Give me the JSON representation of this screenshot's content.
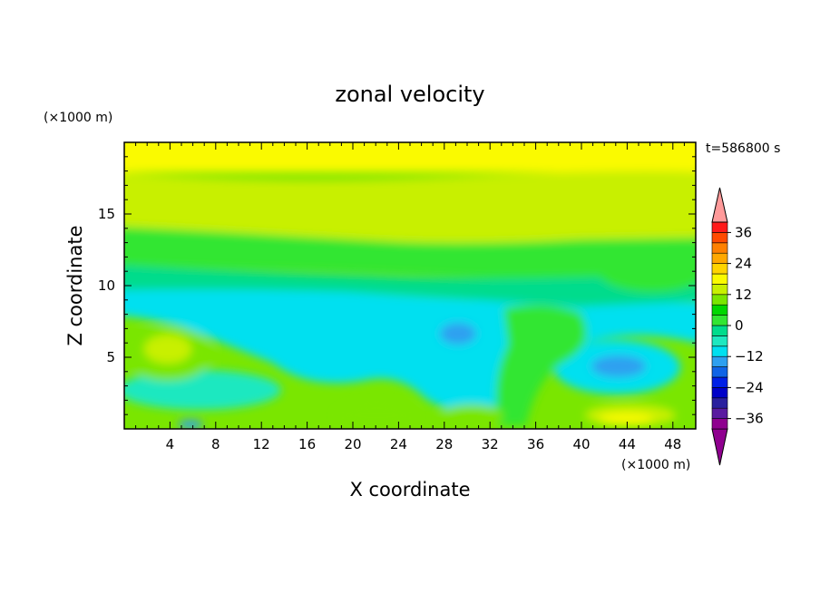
{
  "chart_data": {
    "type": "heatmap",
    "title": "zonal velocity",
    "xlabel": "X coordinate",
    "ylabel": "Z coordinate",
    "x_unit": "(×1000 m)",
    "y_unit": "(×1000 m)",
    "time_label": "t=586800 s",
    "xlim": [
      0,
      50
    ],
    "ylim": [
      0,
      20
    ],
    "x_ticks": [
      4,
      8,
      12,
      16,
      20,
      24,
      28,
      32,
      36,
      40,
      44,
      48
    ],
    "y_ticks": [
      5,
      10,
      15
    ],
    "colorbar": {
      "levels": [
        -40,
        -36,
        -32,
        -28,
        -24,
        -20,
        -16,
        -12,
        -8,
        -4,
        0,
        4,
        8,
        12,
        16,
        20,
        24,
        28,
        32,
        36,
        40
      ],
      "labels": [
        36,
        24,
        12,
        0,
        -12,
        -24,
        -36
      ],
      "colors": [
        "#8f008f",
        "#5a1aa0",
        "#2a1f9e",
        "#0000c8",
        "#0020e6",
        "#1064e6",
        "#2ea0f0",
        "#00e0f0",
        "#1ee8c0",
        "#00dc8c",
        "#32e632",
        "#00d700",
        "#7ae600",
        "#c8f000",
        "#fafa00",
        "#ffd400",
        "#ffa800",
        "#ff8000",
        "#ff4a00",
        "#ff1a1a",
        "#ff9a9a"
      ],
      "extend": "both"
    },
    "grid": false,
    "legend": "colorbar-right"
  }
}
